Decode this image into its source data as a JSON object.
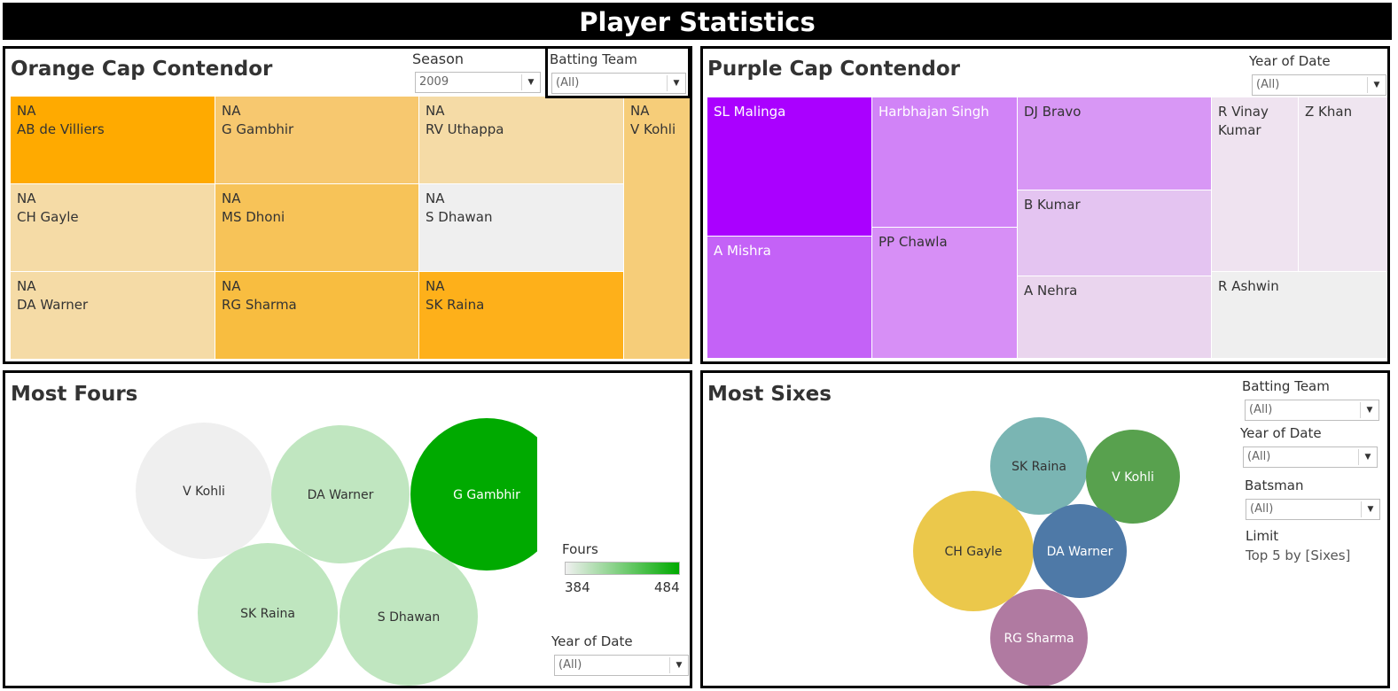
{
  "page_title": "Player Statistics",
  "orange_panel": {
    "title": "Orange Cap Contendor",
    "season_label": "Season",
    "season_value": "2009",
    "batting_team_label": "Batting Team",
    "batting_team_value": "(All)"
  },
  "purple_panel": {
    "title": "Purple Cap Contendor",
    "year_label": "Year of Date",
    "year_value": "(All)"
  },
  "fours_panel": {
    "title": "Most Fours",
    "legend_title": "Fours",
    "legend_min": "384",
    "legend_max": "484",
    "year_label": "Year of Date",
    "year_value": "(All)"
  },
  "sixes_panel": {
    "title": "Most Sixes",
    "batting_team_label": "Batting Team",
    "batting_team_value": "(All)",
    "year_label": "Year of Date",
    "year_value": "(All)",
    "batsman_label": "Batsman",
    "batsman_value": "(All)",
    "limit_label": "Limit",
    "limit_value": "Top 5 by [Sixes]"
  },
  "chart_data": [
    {
      "type": "treemap",
      "title": "Orange Cap Contendor",
      "items": [
        {
          "player": "AB de Villiers",
          "value_label": "NA",
          "color": "#ffaa00"
        },
        {
          "player": "G Gambhir",
          "value_label": "NA",
          "color": "#f7c86f"
        },
        {
          "player": "RV Uthappa",
          "value_label": "NA",
          "color": "#f5dba6"
        },
        {
          "player": "V Kohli",
          "value_label": "NA",
          "color": "#f6cd79"
        },
        {
          "player": "CH Gayle",
          "value_label": "NA",
          "color": "#f5dba6"
        },
        {
          "player": "MS Dhoni",
          "value_label": "NA",
          "color": "#f7c358"
        },
        {
          "player": "S Dhawan",
          "value_label": "NA",
          "color": "#efefef"
        },
        {
          "player": "DA Warner",
          "value_label": "NA",
          "color": "#f5dba6"
        },
        {
          "player": "RG Sharma",
          "value_label": "NA",
          "color": "#f8bd40"
        },
        {
          "player": "SK Raina",
          "value_label": "NA",
          "color": "#feb01a"
        }
      ]
    },
    {
      "type": "treemap",
      "title": "Purple Cap Contendor",
      "items": [
        {
          "player": "SL Malinga",
          "color": "#aa00ff"
        },
        {
          "player": "A Mishra",
          "color": "#c462f7"
        },
        {
          "player": "Harbhajan Singh",
          "color": "#d183f7"
        },
        {
          "player": "PP Chawla",
          "color": "#d78ff6"
        },
        {
          "player": "DJ Bravo",
          "color": "#d897f5"
        },
        {
          "player": "B Kumar",
          "color": "#e4c4f1"
        },
        {
          "player": "A Nehra",
          "color": "#ead5ee"
        },
        {
          "player": "R Vinay Kumar",
          "color": "#efe3f0"
        },
        {
          "player": "Z Khan",
          "color": "#efe5f0"
        },
        {
          "player": "R Ashwin",
          "color": "#efefef"
        }
      ]
    },
    {
      "type": "bubble",
      "title": "Most Fours",
      "legend": {
        "title": "Fours",
        "min": 384,
        "max": 484,
        "min_color": "#f0f0f0",
        "max_color": "#00aa00"
      },
      "items": [
        {
          "player": "V Kohli",
          "color": "#efefef"
        },
        {
          "player": "DA Warner",
          "color": "#c0e6c0"
        },
        {
          "player": "G Gambhir",
          "color": "#00aa00"
        },
        {
          "player": "SK Raina",
          "color": "#bfe6bf"
        },
        {
          "player": "S Dhawan",
          "color": "#c0e6c0"
        }
      ]
    },
    {
      "type": "bubble",
      "title": "Most Sixes",
      "items": [
        {
          "player": "SK Raina",
          "color": "#7ab5b3"
        },
        {
          "player": "V Kohli",
          "color": "#58a14e"
        },
        {
          "player": "CH Gayle",
          "color": "#ebc84b"
        },
        {
          "player": "DA Warner",
          "color": "#4e79a7"
        },
        {
          "player": "RG Sharma",
          "color": "#b07aa1"
        }
      ]
    }
  ]
}
